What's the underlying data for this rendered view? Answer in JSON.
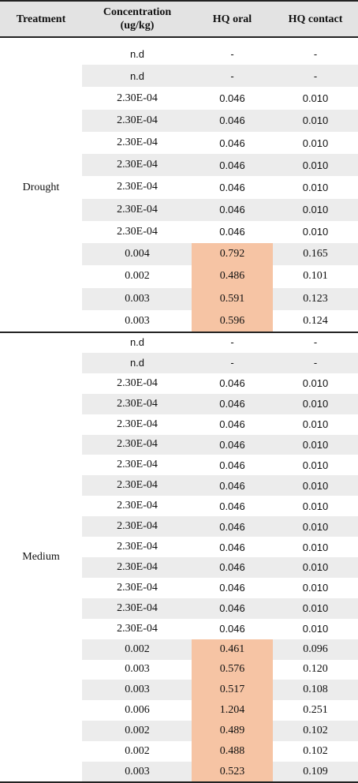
{
  "headers": {
    "treatment": "Treatment",
    "concentration_line1": "Concentration",
    "concentration_line2": "(ug/kg)",
    "hq_oral": "HQ oral",
    "hq_contact": "HQ contact"
  },
  "colors": {
    "highlight": "#f6c4a4",
    "header_bg": "#e3e3e3",
    "row_shade": "#ececec"
  },
  "groups": [
    {
      "treatment": "Drought",
      "rows": [
        {
          "conc": "n.d",
          "oral": "-",
          "contact": "-",
          "font": "sans",
          "highlight": false
        },
        {
          "conc": "n.d",
          "oral": "-",
          "contact": "-",
          "font": "sans",
          "highlight": false
        },
        {
          "conc": "2.30E-04",
          "oral": "0.046",
          "contact": "0.010",
          "font": "mixed",
          "highlight": false
        },
        {
          "conc": "2.30E-04",
          "oral": "0.046",
          "contact": "0.010",
          "font": "mixed",
          "highlight": false
        },
        {
          "conc": "2.30E-04",
          "oral": "0.046",
          "contact": "0.010",
          "font": "mixed",
          "highlight": false
        },
        {
          "conc": "2.30E-04",
          "oral": "0.046",
          "contact": "0.010",
          "font": "mixed",
          "highlight": false
        },
        {
          "conc": "2.30E-04",
          "oral": "0.046",
          "contact": "0.010",
          "font": "mixed",
          "highlight": false
        },
        {
          "conc": "2.30E-04",
          "oral": "0.046",
          "contact": "0.010",
          "font": "mixed",
          "highlight": false
        },
        {
          "conc": "2.30E-04",
          "oral": "0.046",
          "contact": "0.010",
          "font": "mixed",
          "highlight": false
        },
        {
          "conc": "0.004",
          "oral": "0.792",
          "contact": "0.165",
          "font": "serif",
          "highlight": true
        },
        {
          "conc": "0.002",
          "oral": "0.486",
          "contact": "0.101",
          "font": "serif",
          "highlight": true
        },
        {
          "conc": "0.003",
          "oral": "0.591",
          "contact": "0.123",
          "font": "serif",
          "highlight": true
        },
        {
          "conc": "0.003",
          "oral": "0.596",
          "contact": "0.124",
          "font": "serif",
          "highlight": true
        }
      ]
    },
    {
      "treatment": "Medium",
      "rows": [
        {
          "conc": "n.d",
          "oral": "-",
          "contact": "-",
          "font": "sans",
          "highlight": false
        },
        {
          "conc": "n.d",
          "oral": "-",
          "contact": "-",
          "font": "sans",
          "highlight": false
        },
        {
          "conc": "2.30E-04",
          "oral": "0.046",
          "contact": "0.010",
          "font": "mixed",
          "highlight": false
        },
        {
          "conc": "2.30E-04",
          "oral": "0.046",
          "contact": "0.010",
          "font": "mixed",
          "highlight": false
        },
        {
          "conc": "2.30E-04",
          "oral": "0.046",
          "contact": "0.010",
          "font": "mixed",
          "highlight": false
        },
        {
          "conc": "2.30E-04",
          "oral": "0.046",
          "contact": "0.010",
          "font": "mixed",
          "highlight": false
        },
        {
          "conc": "2.30E-04",
          "oral": "0.046",
          "contact": "0.010",
          "font": "mixed",
          "highlight": false
        },
        {
          "conc": "2.30E-04",
          "oral": "0.046",
          "contact": "0.010",
          "font": "mixed",
          "highlight": false
        },
        {
          "conc": "2.30E-04",
          "oral": "0.046",
          "contact": "0.010",
          "font": "mixed",
          "highlight": false
        },
        {
          "conc": "2.30E-04",
          "oral": "0.046",
          "contact": "0.010",
          "font": "mixed",
          "highlight": false
        },
        {
          "conc": "2.30E-04",
          "oral": "0.046",
          "contact": "0.010",
          "font": "mixed",
          "highlight": false
        },
        {
          "conc": "2.30E-04",
          "oral": "0.046",
          "contact": "0.010",
          "font": "mixed",
          "highlight": false
        },
        {
          "conc": "2.30E-04",
          "oral": "0.046",
          "contact": "0.010",
          "font": "mixed",
          "highlight": false
        },
        {
          "conc": "2.30E-04",
          "oral": "0.046",
          "contact": "0.010",
          "font": "mixed",
          "highlight": false
        },
        {
          "conc": "2.30E-04",
          "oral": "0.046",
          "contact": "0.010",
          "font": "mixed",
          "highlight": false
        },
        {
          "conc": "0.002",
          "oral": "0.461",
          "contact": "0.096",
          "font": "serif",
          "highlight": true
        },
        {
          "conc": "0.003",
          "oral": "0.576",
          "contact": "0.120",
          "font": "serif",
          "highlight": true
        },
        {
          "conc": "0.003",
          "oral": "0.517",
          "contact": "0.108",
          "font": "serif",
          "highlight": true
        },
        {
          "conc": "0.006",
          "oral": "1.204",
          "contact": "0.251",
          "font": "serif",
          "highlight": true
        },
        {
          "conc": "0.002",
          "oral": "0.489",
          "contact": "0.102",
          "font": "serif",
          "highlight": true
        },
        {
          "conc": "0.002",
          "oral": "0.488",
          "contact": "0.102",
          "font": "serif",
          "highlight": true
        },
        {
          "conc": "0.003",
          "oral": "0.523",
          "contact": "0.109",
          "font": "serif",
          "highlight": true
        }
      ]
    }
  ]
}
